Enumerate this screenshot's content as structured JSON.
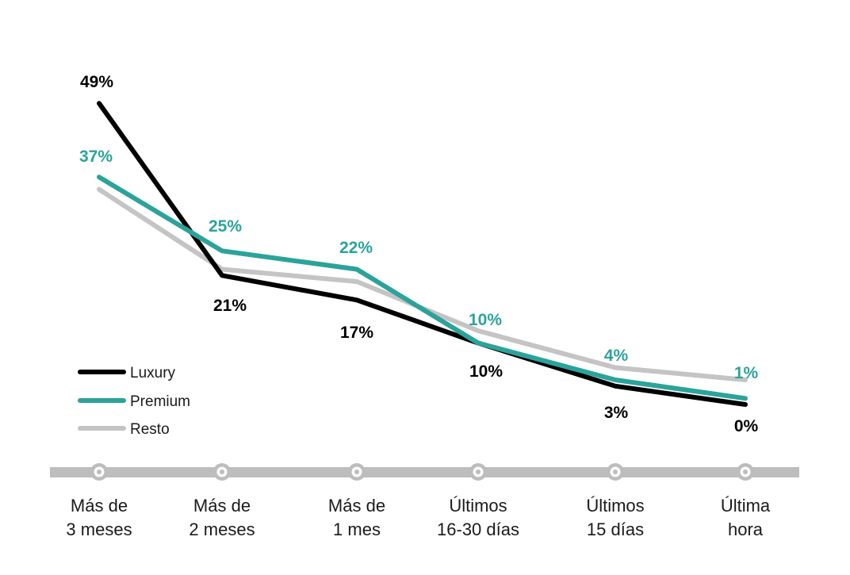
{
  "chart_data": {
    "type": "line",
    "categories": [
      [
        "Más de",
        "3 meses"
      ],
      [
        "Más de",
        "2 meses"
      ],
      [
        "Más de",
        "1 mes"
      ],
      [
        "Últimos",
        "16-30 días"
      ],
      [
        "Últimos",
        "15 días"
      ],
      [
        "Última",
        "hora"
      ]
    ],
    "ylim": [
      0,
      60
    ],
    "series": [
      {
        "name": "Luxury",
        "color": "#000000",
        "values": [
          49,
          21,
          17,
          10,
          3,
          0
        ],
        "labels": [
          "49%",
          "21%",
          "17%",
          "10%",
          "3%",
          "0%"
        ],
        "label_color": "#000000"
      },
      {
        "name": "Premium",
        "color": "#2ba39b",
        "values": [
          37,
          25,
          22,
          10,
          4,
          1
        ],
        "labels": [
          "37%",
          "25%",
          "22%",
          "10%",
          "4%",
          "1%"
        ],
        "label_color": "#2ba39b"
      },
      {
        "name": "Resto",
        "color": "#c4c4c4",
        "values": [
          35,
          22,
          20,
          12,
          6,
          4
        ],
        "labels": [],
        "label_color": "#c4c4c4"
      }
    ],
    "legend": [
      "Luxury",
      "Premium",
      "Resto"
    ],
    "legend_position": "bottom-left",
    "timeline_color": "#bdbdbd"
  }
}
